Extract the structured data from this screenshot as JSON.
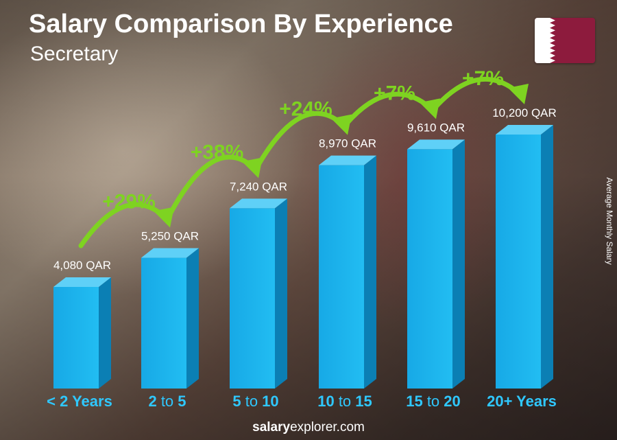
{
  "title": "Salary Comparison By Experience",
  "subtitle": "Secretary",
  "y_axis_label": "Average Monthly Salary",
  "footer": {
    "brand_bold": "salary",
    "brand_rest": "explorer.com"
  },
  "colors": {
    "bar": "#1ab2ec",
    "bar_side": "#0b7fb4",
    "bar_top": "#5fd0f7",
    "increase": "#7ed321",
    "label_cyan": "#2fc8ff"
  },
  "chart_data": {
    "type": "bar",
    "categories": [
      {
        "first": "< 2",
        "mid": "",
        "last": "Years"
      },
      {
        "first": "2",
        "mid": "to",
        "last": "5"
      },
      {
        "first": "5",
        "mid": "to",
        "last": "10"
      },
      {
        "first": "10",
        "mid": "to",
        "last": "15"
      },
      {
        "first": "15",
        "mid": "to",
        "last": "20"
      },
      {
        "first": "20+",
        "mid": "",
        "last": "Years"
      }
    ],
    "values": [
      4080,
      5250,
      7240,
      8970,
      9610,
      10200
    ],
    "value_labels": [
      "4,080 QAR",
      "5,250 QAR",
      "7,240 QAR",
      "8,970 QAR",
      "9,610 QAR",
      "10,200 QAR"
    ],
    "increases": [
      "+29%",
      "+38%",
      "+24%",
      "+7%",
      "+7%"
    ],
    "unit": "QAR",
    "ylim": [
      0,
      10200
    ]
  }
}
